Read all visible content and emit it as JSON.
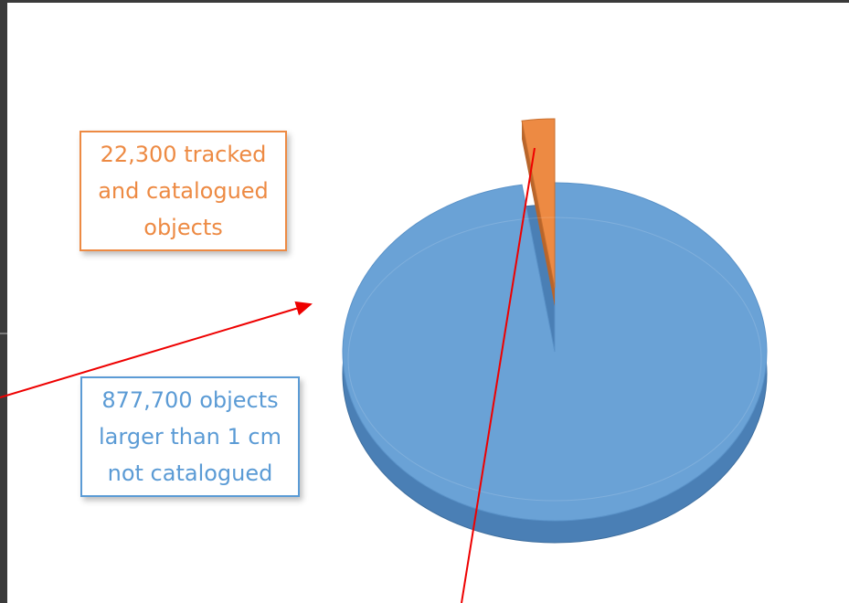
{
  "chart_data": {
    "type": "pie",
    "categories": [
      "tracked and catalogued objects",
      "objects larger than 1 cm not catalogued"
    ],
    "values": [
      22300,
      877700
    ],
    "value_labels": [
      "22,300",
      "877,700"
    ],
    "colors": [
      "#ed8a43",
      "#6aa2d6"
    ]
  }
}
